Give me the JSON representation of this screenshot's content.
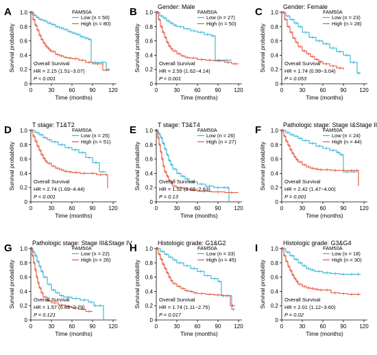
{
  "colors": {
    "low": "#2fb3d0",
    "high": "#e5533b"
  },
  "legend_title": "FAM50A",
  "xlabel": "Time (months)",
  "ylabel": "Survival probability",
  "stat_title": "Overall Survival",
  "x_ticks": [
    0,
    30,
    60,
    90,
    120
  ],
  "y_ticks": [
    0.0,
    0.2,
    0.4,
    0.6,
    0.8,
    1.0
  ],
  "y_tick_labels": [
    "0",
    "0.2",
    "0.4",
    "0.6",
    "0.8",
    "1.0"
  ],
  "chart_data": [
    {
      "type": "line",
      "panel": "A",
      "title": "",
      "xlim": [
        0,
        125
      ],
      "ylim": [
        0,
        1
      ],
      "series": [
        {
          "name": "Low",
          "n": "50",
          "x": [
            0,
            4,
            8,
            12,
            18,
            24,
            30,
            36,
            42,
            48,
            54,
            60,
            66,
            72,
            78,
            84,
            88,
            100,
            110,
            115
          ],
          "y": [
            1.0,
            0.96,
            0.93,
            0.9,
            0.88,
            0.85,
            0.83,
            0.8,
            0.78,
            0.76,
            0.73,
            0.71,
            0.69,
            0.66,
            0.64,
            0.62,
            0.3,
            0.3,
            0.2,
            0.2
          ]
        },
        {
          "name": "High",
          "n": "80",
          "x": [
            0,
            3,
            6,
            9,
            12,
            15,
            18,
            21,
            24,
            27,
            30,
            36,
            42,
            48,
            54,
            60,
            70,
            80,
            90,
            105,
            115
          ],
          "y": [
            1.0,
            0.9,
            0.82,
            0.75,
            0.68,
            0.62,
            0.57,
            0.53,
            0.5,
            0.47,
            0.45,
            0.41,
            0.39,
            0.37,
            0.36,
            0.35,
            0.33,
            0.3,
            0.28,
            0.19,
            0.19
          ]
        }
      ],
      "legend": [
        "Low (n = 50)",
        "High (n = 80)"
      ],
      "hr": "HR = 2.15 (1.51−3.07)",
      "p": "P < 0.001"
    },
    {
      "type": "line",
      "panel": "B",
      "title": "Gender: Male",
      "xlim": [
        0,
        125
      ],
      "ylim": [
        0,
        1
      ],
      "series": [
        {
          "name": "Low",
          "n": "27",
          "x": [
            0,
            5,
            10,
            15,
            20,
            25,
            30,
            40,
            50,
            60,
            70,
            80,
            86,
            95,
            110
          ],
          "y": [
            1.0,
            0.95,
            0.92,
            0.88,
            0.85,
            0.82,
            0.8,
            0.77,
            0.74,
            0.72,
            0.69,
            0.67,
            0.33,
            0.33,
            0.33
          ]
        },
        {
          "name": "High",
          "n": "50",
          "x": [
            0,
            3,
            6,
            9,
            12,
            15,
            18,
            21,
            24,
            30,
            36,
            42,
            48,
            60,
            72,
            84,
            100,
            110,
            120
          ],
          "y": [
            1.0,
            0.9,
            0.8,
            0.72,
            0.65,
            0.58,
            0.53,
            0.49,
            0.46,
            0.42,
            0.39,
            0.37,
            0.36,
            0.34,
            0.33,
            0.32,
            0.3,
            0.28,
            0.28
          ]
        }
      ],
      "legend": [
        "Low (n = 27)",
        "High (n = 50)"
      ],
      "hr": "HR = 2.59 (1.62−4.14)",
      "p": "P < 0.001"
    },
    {
      "type": "line",
      "panel": "C",
      "title": "Gender: Female",
      "xlim": [
        0,
        125
      ],
      "ylim": [
        0,
        1
      ],
      "series": [
        {
          "name": "Low",
          "n": "23",
          "x": [
            0,
            6,
            12,
            18,
            24,
            30,
            40,
            50,
            60,
            70,
            80,
            90,
            100,
            110,
            115
          ],
          "y": [
            1.0,
            0.95,
            0.9,
            0.85,
            0.8,
            0.72,
            0.65,
            0.6,
            0.56,
            0.5,
            0.45,
            0.4,
            0.3,
            0.15,
            0.15
          ]
        },
        {
          "name": "High",
          "n": "28",
          "x": [
            0,
            4,
            8,
            12,
            16,
            20,
            24,
            30,
            36,
            42,
            48,
            54,
            60,
            70,
            80,
            90
          ],
          "y": [
            1.0,
            0.9,
            0.8,
            0.72,
            0.64,
            0.58,
            0.52,
            0.46,
            0.42,
            0.38,
            0.34,
            0.31,
            0.28,
            0.25,
            0.22,
            0.2
          ]
        }
      ],
      "legend": [
        "Low (n = 23)",
        "High (n = 28)"
      ],
      "hr": "HR = 1.74 (0.99−3.04)",
      "p": "P = 0.053"
    },
    {
      "type": "line",
      "panel": "D",
      "title": "T stage: T1&T2",
      "xlim": [
        0,
        125
      ],
      "ylim": [
        0,
        1
      ],
      "series": [
        {
          "name": "Low",
          "n": "25",
          "x": [
            0,
            6,
            12,
            18,
            24,
            30,
            40,
            50,
            60,
            70,
            80,
            90,
            100,
            110
          ],
          "y": [
            1.0,
            0.97,
            0.94,
            0.9,
            0.87,
            0.84,
            0.8,
            0.76,
            0.73,
            0.69,
            0.62,
            0.55,
            0.42,
            0.42
          ]
        },
        {
          "name": "High",
          "n": "51",
          "x": [
            0,
            3,
            6,
            9,
            12,
            15,
            18,
            21,
            24,
            30,
            36,
            42,
            48,
            54,
            60,
            72,
            84,
            96,
            108,
            112
          ],
          "y": [
            1.0,
            0.92,
            0.85,
            0.78,
            0.72,
            0.66,
            0.61,
            0.57,
            0.54,
            0.5,
            0.47,
            0.45,
            0.43,
            0.42,
            0.41,
            0.4,
            0.4,
            0.38,
            0.38,
            0.19
          ]
        }
      ],
      "legend": [
        "Low (n = 25)",
        "High (n = 51)"
      ],
      "hr": "HR = 2.74 (1.69−4.44)",
      "p": "P < 0.001"
    },
    {
      "type": "line",
      "panel": "E",
      "title": "T stage: T3&T4",
      "xlim": [
        0,
        125
      ],
      "ylim": [
        0,
        1
      ],
      "series": [
        {
          "name": "Low",
          "n": "26",
          "x": [
            0,
            3,
            6,
            9,
            12,
            15,
            18,
            21,
            24,
            30,
            36,
            42,
            48,
            60,
            72,
            84,
            96,
            102,
            106
          ],
          "y": [
            1.0,
            0.95,
            0.9,
            0.82,
            0.74,
            0.66,
            0.58,
            0.52,
            0.46,
            0.4,
            0.36,
            0.32,
            0.28,
            0.25,
            0.22,
            0.2,
            0.2,
            0.2,
            0.0
          ]
        },
        {
          "name": "High",
          "n": "27",
          "x": [
            0,
            2,
            4,
            6,
            8,
            10,
            12,
            15,
            18,
            21,
            24,
            30,
            40,
            50,
            60,
            80,
            100,
            120
          ],
          "y": [
            1.0,
            0.9,
            0.8,
            0.7,
            0.6,
            0.5,
            0.42,
            0.36,
            0.3,
            0.26,
            0.22,
            0.2,
            0.18,
            0.16,
            0.15,
            0.14,
            0.13,
            0.13
          ]
        }
      ],
      "legend": [
        "Low (n = 26)",
        "High (n = 27)"
      ],
      "hr": "HR = 1.52 (0.88−2.63)",
      "p": "P = 0.13"
    },
    {
      "type": "line",
      "panel": "F",
      "title": "Pathologic stage: Stage I&Stage II",
      "xlim": [
        0,
        125
      ],
      "ylim": [
        0,
        1
      ],
      "series": [
        {
          "name": "Low",
          "n": "24",
          "x": [
            0,
            6,
            12,
            18,
            24,
            30,
            40,
            50,
            60,
            70,
            80,
            85,
            90,
            100,
            110
          ],
          "y": [
            1.0,
            0.97,
            0.94,
            0.92,
            0.89,
            0.86,
            0.82,
            0.78,
            0.75,
            0.72,
            0.69,
            0.66,
            0.42,
            0.42,
            0.42
          ]
        },
        {
          "name": "High",
          "n": "44",
          "x": [
            0,
            3,
            6,
            9,
            12,
            15,
            18,
            21,
            24,
            30,
            36,
            42,
            48,
            54,
            60,
            72,
            84,
            96,
            108,
            112
          ],
          "y": [
            1.0,
            0.92,
            0.85,
            0.79,
            0.73,
            0.68,
            0.63,
            0.59,
            0.56,
            0.52,
            0.49,
            0.47,
            0.46,
            0.45,
            0.45,
            0.44,
            0.44,
            0.44,
            0.44,
            0.22
          ]
        }
      ],
      "legend": [
        "Low (n = 24)",
        "High (n = 44)"
      ],
      "hr": "HR = 2.42 (1.47−4.00)",
      "p": "P = 0.001"
    },
    {
      "type": "line",
      "panel": "G",
      "title": "Pathologic stage: Stage III&Stage IV",
      "xlim": [
        0,
        125
      ],
      "ylim": [
        0,
        1
      ],
      "series": [
        {
          "name": "Low",
          "n": "22",
          "x": [
            0,
            3,
            6,
            9,
            12,
            15,
            18,
            24,
            30,
            36,
            42,
            48,
            60,
            72,
            84,
            92,
            96,
            106
          ],
          "y": [
            1.0,
            0.95,
            0.9,
            0.82,
            0.75,
            0.68,
            0.6,
            0.5,
            0.42,
            0.38,
            0.34,
            0.32,
            0.3,
            0.28,
            0.25,
            0.2,
            0.2,
            0.0
          ]
        },
        {
          "name": "High",
          "n": "26",
          "x": [
            0,
            2,
            4,
            6,
            8,
            10,
            12,
            15,
            18,
            24,
            30,
            40,
            50,
            60,
            70,
            80,
            90
          ],
          "y": [
            1.0,
            0.9,
            0.8,
            0.7,
            0.6,
            0.52,
            0.45,
            0.38,
            0.32,
            0.27,
            0.24,
            0.21,
            0.19,
            0.17,
            0.15,
            0.12,
            0.12
          ]
        }
      ],
      "legend": [
        "Low (n = 22)",
        "High (n = 26)"
      ],
      "hr": "HR = 1.57 (0.89−2.79)",
      "p": "P = 0.121"
    },
    {
      "type": "line",
      "panel": "H",
      "title": "Histologic grade: G1&G2",
      "xlim": [
        0,
        125
      ],
      "ylim": [
        0,
        1
      ],
      "series": [
        {
          "name": "Low",
          "n": "33",
          "x": [
            0,
            6,
            12,
            18,
            24,
            30,
            40,
            50,
            60,
            70,
            80,
            90,
            95,
            100,
            110,
            115
          ],
          "y": [
            1.0,
            0.96,
            0.92,
            0.88,
            0.84,
            0.8,
            0.76,
            0.72,
            0.68,
            0.62,
            0.58,
            0.54,
            0.34,
            0.34,
            0.15,
            0.15
          ]
        },
        {
          "name": "High",
          "n": "45",
          "x": [
            0,
            3,
            6,
            9,
            12,
            15,
            18,
            21,
            24,
            30,
            36,
            42,
            48,
            54,
            60,
            72,
            84,
            96,
            108,
            115
          ],
          "y": [
            1.0,
            0.92,
            0.85,
            0.78,
            0.72,
            0.66,
            0.6,
            0.55,
            0.51,
            0.47,
            0.44,
            0.41,
            0.4,
            0.38,
            0.37,
            0.36,
            0.35,
            0.34,
            0.2,
            0.2
          ]
        }
      ],
      "legend": [
        "Low (n = 33)",
        "High (n = 45)"
      ],
      "hr": "HR = 1.74 (1.11−2.75)",
      "p": "P = 0.017"
    },
    {
      "type": "line",
      "panel": "I",
      "title": "Histologic grade: G3&G4",
      "xlim": [
        0,
        125
      ],
      "ylim": [
        0,
        1
      ],
      "series": [
        {
          "name": "Low",
          "n": "18",
          "x": [
            0,
            6,
            12,
            18,
            24,
            30,
            36,
            42,
            48,
            60,
            72,
            84,
            96,
            108,
            115
          ],
          "y": [
            1.0,
            0.95,
            0.9,
            0.85,
            0.8,
            0.76,
            0.72,
            0.7,
            0.68,
            0.66,
            0.65,
            0.64,
            0.64,
            0.64,
            0.64
          ]
        },
        {
          "name": "High",
          "n": "30",
          "x": [
            0,
            3,
            6,
            9,
            12,
            15,
            18,
            21,
            24,
            30,
            36,
            42,
            48,
            54,
            60,
            72,
            84,
            96,
            108,
            115
          ],
          "y": [
            1.0,
            0.9,
            0.82,
            0.75,
            0.69,
            0.63,
            0.58,
            0.54,
            0.5,
            0.47,
            0.45,
            0.44,
            0.43,
            0.42,
            0.42,
            0.38,
            0.37,
            0.36,
            0.36,
            0.36
          ]
        }
      ],
      "legend": [
        "Low (n = 18)",
        "High (n = 30)"
      ],
      "hr": "HR = 2.01 (1.12−3.60)",
      "p": "P = 0.02"
    }
  ]
}
